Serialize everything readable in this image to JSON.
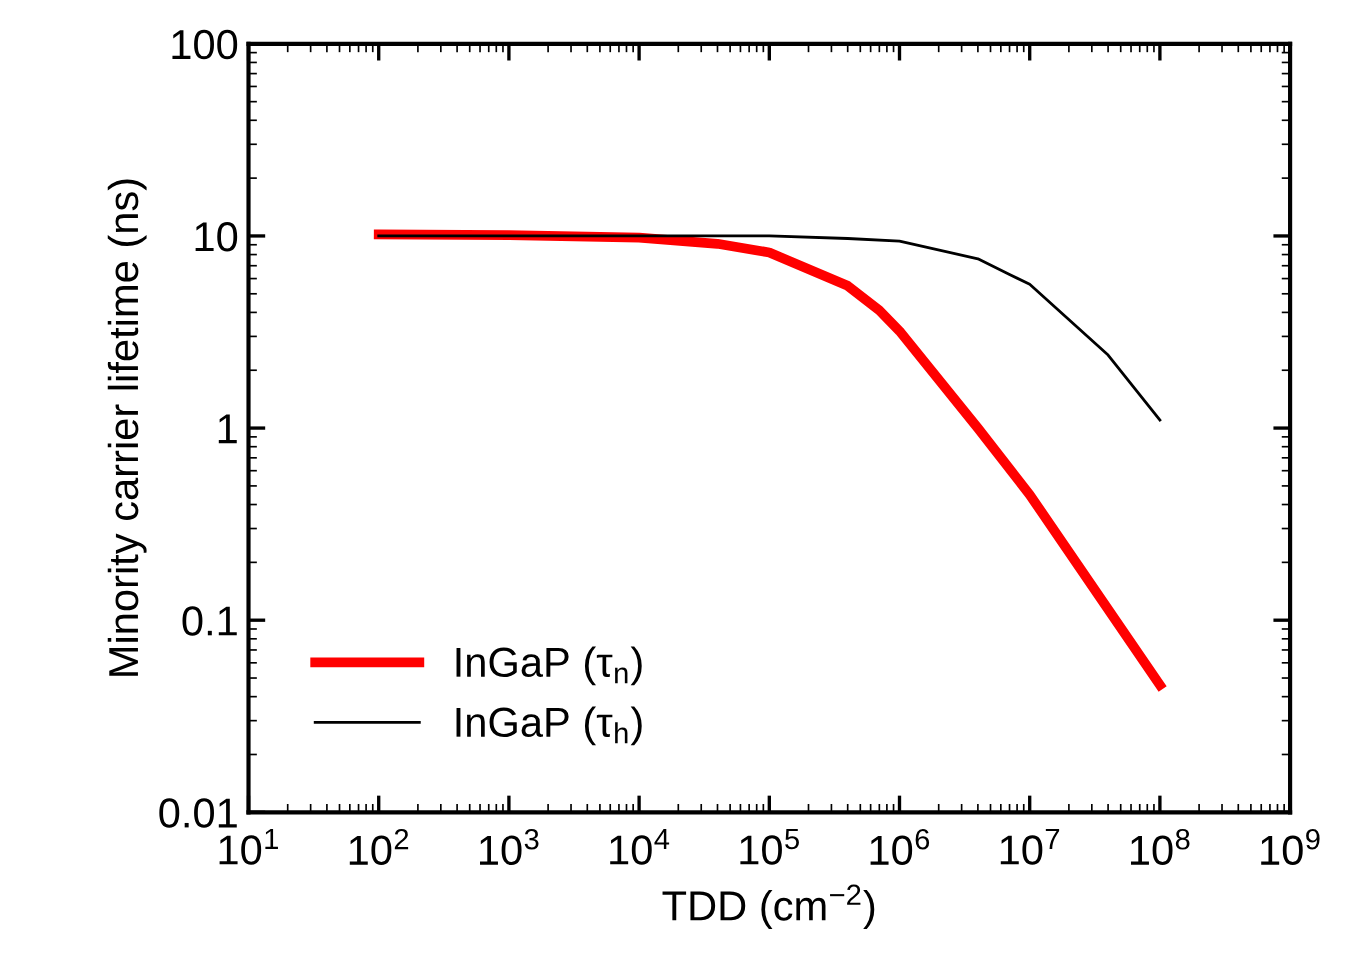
{
  "chart_data": {
    "type": "line",
    "xlabel": "TDD (cm$^{−2}$)",
    "ylabel": "Minority carrier lifetime (ns)",
    "log": "xy",
    "xlim": [
      10,
      1000000000
    ],
    "ylim": [
      0.01,
      100
    ],
    "xticks": [
      {
        "value": 10,
        "label": "10$^{1}$"
      },
      {
        "value": 100,
        "label": "10$^{2}$"
      },
      {
        "value": 1000,
        "label": "10$^{3}$"
      },
      {
        "value": 10000,
        "label": "10$^{4}$"
      },
      {
        "value": 100000,
        "label": "10$^{5}$"
      },
      {
        "value": 1000000,
        "label": "10$^{6}$"
      },
      {
        "value": 10000000,
        "label": "10$^{7}$"
      },
      {
        "value": 100000000,
        "label": "10$^{8}$"
      },
      {
        "value": 1000000000,
        "label": "10$^{9}$"
      }
    ],
    "yticks": [
      0.01,
      0.1,
      1,
      10,
      100
    ],
    "legend": "bottom left",
    "grid": false,
    "marker": "none",
    "line_style": "solid",
    "series": [
      {
        "name": "InGaP (τ$_{n}$)",
        "color": "#ff0000",
        "x": [
          100,
          1000,
          10000,
          40000,
          100000,
          400000,
          700000,
          1000000,
          4000000,
          10000000,
          100000000
        ],
        "values": [
          10.2,
          10.1,
          9.8,
          9.1,
          8.2,
          5.5,
          4.1,
          3.2,
          1.0,
          0.45,
          0.046
        ]
      },
      {
        "name": "InGaP (τ$_{h}$)",
        "color": "#000000",
        "x": [
          100,
          1000,
          10000,
          100000,
          400000,
          1000000,
          4000000,
          7000000,
          10000000,
          40000000,
          100000000
        ],
        "values": [
          10,
          10,
          10,
          10,
          9.7,
          9.4,
          7.6,
          6.3,
          5.6,
          2.4,
          1.1
        ]
      }
    ]
  }
}
